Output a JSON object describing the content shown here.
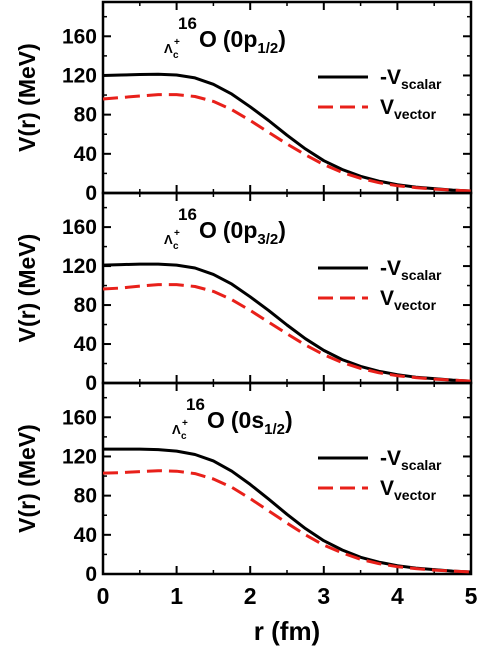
{
  "chart_data": [
    {
      "type": "line",
      "nucleus": {
        "mass": "16",
        "hyperon": "Λ",
        "hyp_super": "+",
        "hyp_sub": "c",
        "element": "O",
        "state_main": "(0p",
        "state_sub": "1/2",
        "state_close": ")"
      },
      "ylabel": "V(r) (MeV)",
      "xlabel": "",
      "xlim": [
        0,
        5
      ],
      "ylim": [
        0,
        195
      ],
      "yticks": [
        "0",
        "40",
        "80",
        "120",
        "160"
      ],
      "legend_position": "right",
      "series": [
        {
          "name": "-V",
          "name_sub": "scalar",
          "color": "#000000",
          "dash": "solid",
          "x": [
            0,
            0.25,
            0.5,
            0.75,
            1.0,
            1.25,
            1.5,
            1.75,
            2.0,
            2.25,
            2.5,
            2.75,
            3.0,
            3.25,
            3.5,
            3.75,
            4.0,
            4.25,
            4.5,
            4.75,
            5.0
          ],
          "y": [
            120,
            120.5,
            121,
            121.3,
            120.5,
            117.5,
            111,
            101,
            88,
            74,
            59,
            45,
            33,
            24,
            17,
            12,
            8.5,
            6,
            4.5,
            3,
            2
          ]
        },
        {
          "name": "V",
          "name_sub": "vector",
          "color": "#e8201a",
          "dash": "dashed",
          "x": [
            0,
            0.25,
            0.5,
            0.75,
            1.0,
            1.25,
            1.5,
            1.75,
            2.0,
            2.25,
            2.5,
            2.75,
            3.0,
            3.25,
            3.5,
            3.75,
            4.0,
            4.25,
            4.5,
            4.75,
            5.0
          ],
          "y": [
            96,
            97.5,
            99,
            100.5,
            100.5,
            98.5,
            93.5,
            85,
            74,
            62,
            50,
            39,
            29,
            21,
            15,
            10.5,
            7.5,
            5.5,
            4,
            3,
            2
          ]
        }
      ]
    },
    {
      "type": "line",
      "nucleus": {
        "mass": "16",
        "hyperon": "Λ",
        "hyp_super": "+",
        "hyp_sub": "c",
        "element": "O",
        "state_main": "(0p",
        "state_sub": "3/2",
        "state_close": ")"
      },
      "ylabel": "V(r) (MeV)",
      "xlabel": "",
      "xlim": [
        0,
        5
      ],
      "ylim": [
        0,
        195
      ],
      "yticks": [
        "0",
        "40",
        "80",
        "120",
        "160"
      ],
      "legend_position": "right",
      "series": [
        {
          "name": "-V",
          "name_sub": "scalar",
          "color": "#000000",
          "dash": "solid",
          "x": [
            0,
            0.25,
            0.5,
            0.75,
            1.0,
            1.25,
            1.5,
            1.75,
            2.0,
            2.25,
            2.5,
            2.75,
            3.0,
            3.25,
            3.5,
            3.75,
            4.0,
            4.25,
            4.5,
            4.75,
            5.0
          ],
          "y": [
            121,
            121.5,
            122,
            122,
            121,
            118,
            111.5,
            101.5,
            88.5,
            74.5,
            59.5,
            45.5,
            33.5,
            24,
            17,
            12,
            8.5,
            6,
            4.5,
            3,
            2
          ]
        },
        {
          "name": "V",
          "name_sub": "vector",
          "color": "#e8201a",
          "dash": "dashed",
          "x": [
            0,
            0.25,
            0.5,
            0.75,
            1.0,
            1.25,
            1.5,
            1.75,
            2.0,
            2.25,
            2.5,
            2.75,
            3.0,
            3.25,
            3.5,
            3.75,
            4.0,
            4.25,
            4.5,
            4.75,
            5.0
          ],
          "y": [
            96.5,
            97.5,
            99.5,
            101,
            101,
            99,
            94,
            85.5,
            74.5,
            62.5,
            50.5,
            39,
            29,
            21,
            15,
            10.5,
            7.5,
            5.5,
            4,
            3,
            2
          ]
        }
      ]
    },
    {
      "type": "line",
      "nucleus": {
        "mass": "16",
        "hyperon": "Λ",
        "hyp_super": "+",
        "hyp_sub": "c",
        "element": "O",
        "state_main": "(0s",
        "state_sub": "1/2",
        "state_close": ")"
      },
      "ylabel": "V(r) (MeV)",
      "xlabel": "r (fm)",
      "xlim": [
        0,
        5
      ],
      "ylim": [
        0,
        195
      ],
      "xticks": [
        "0",
        "1",
        "2",
        "3",
        "4",
        "5"
      ],
      "yticks": [
        "0",
        "40",
        "80",
        "120",
        "160"
      ],
      "legend_position": "right",
      "series": [
        {
          "name": "-V",
          "name_sub": "scalar",
          "color": "#000000",
          "dash": "solid",
          "x": [
            0,
            0.25,
            0.5,
            0.75,
            1.0,
            1.25,
            1.5,
            1.75,
            2.0,
            2.25,
            2.5,
            2.75,
            3.0,
            3.25,
            3.5,
            3.75,
            4.0,
            4.25,
            4.5,
            4.75,
            5.0
          ],
          "y": [
            127.5,
            127.5,
            127.5,
            127,
            125.5,
            122,
            115.5,
            105,
            91.5,
            76.5,
            61,
            46.5,
            34,
            24.5,
            17,
            12,
            8.5,
            6,
            4.5,
            3,
            2
          ]
        },
        {
          "name": "V",
          "name_sub": "vector",
          "color": "#e8201a",
          "dash": "dashed",
          "x": [
            0,
            0.25,
            0.5,
            0.75,
            1.0,
            1.25,
            1.5,
            1.75,
            2.0,
            2.25,
            2.5,
            2.75,
            3.0,
            3.25,
            3.5,
            3.75,
            4.0,
            4.25,
            4.5,
            4.75,
            5.0
          ],
          "y": [
            103,
            103.5,
            104.5,
            105.5,
            105,
            102.5,
            97,
            88.5,
            77,
            64.5,
            52,
            40,
            29.5,
            21.5,
            15,
            10.5,
            7.5,
            5.5,
            4,
            3,
            2
          ]
        }
      ]
    }
  ]
}
